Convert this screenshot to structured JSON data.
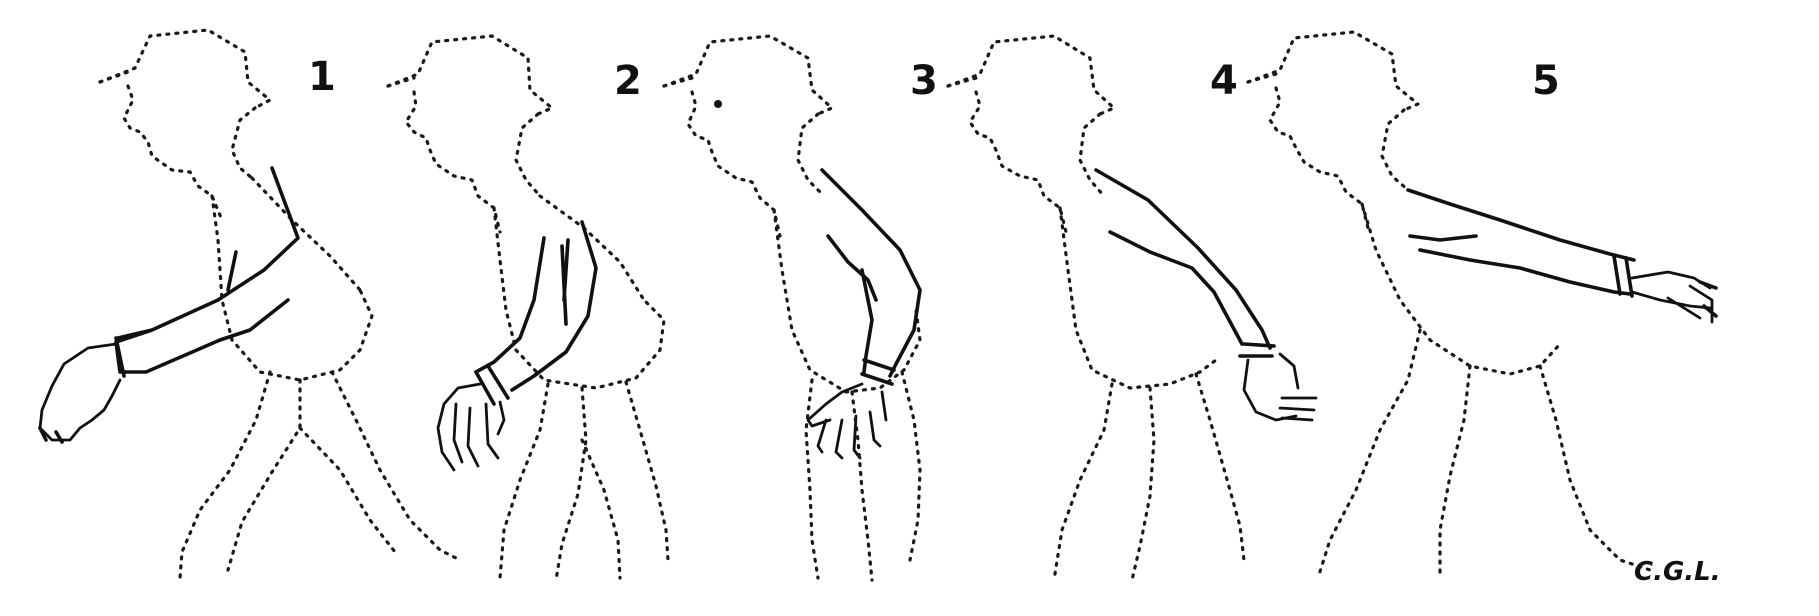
{
  "figure": {
    "frames": [
      {
        "number": "1"
      },
      {
        "number": "2"
      },
      {
        "number": "3"
      },
      {
        "number": "4"
      },
      {
        "number": "5"
      }
    ],
    "signature": "C.G.L."
  },
  "colors": {
    "ink": "#111111",
    "paper": "#ffffff"
  }
}
